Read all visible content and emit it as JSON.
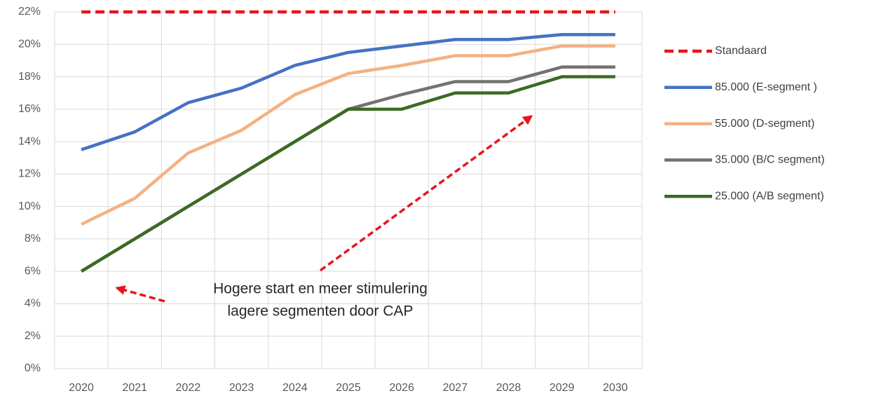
{
  "chart_data": {
    "type": "line",
    "categories": [
      "2020",
      "2021",
      "2022",
      "2023",
      "2024",
      "2025",
      "2026",
      "2027",
      "2028",
      "2029",
      "2030"
    ],
    "series": [
      {
        "name": "Standaard",
        "color": "#e8141b",
        "dashed": true,
        "values": [
          22,
          22,
          22,
          22,
          22,
          22,
          22,
          22,
          22,
          22,
          22
        ]
      },
      {
        "name": "85.000 (E-segment )",
        "color": "#4472c4",
        "values": [
          13.5,
          14.6,
          16.4,
          17.3,
          18.7,
          19.5,
          19.9,
          20.3,
          20.3,
          20.6,
          20.6
        ]
      },
      {
        "name": "55.000 (D-segment)",
        "color": "#f4b183",
        "values": [
          8.9,
          10.5,
          13.3,
          14.7,
          16.9,
          18.2,
          18.7,
          19.3,
          19.3,
          19.9,
          19.9
        ]
      },
      {
        "name": "35.000 (B/C segment)",
        "color": "#767171",
        "values": [
          6,
          8,
          10,
          12,
          14,
          16,
          16.9,
          17.7,
          17.7,
          18.6,
          18.6
        ]
      },
      {
        "name": "25.000 (A/B segment)",
        "color": "#3b6b22",
        "values": [
          6,
          8,
          10,
          12,
          14,
          16,
          16,
          17,
          17,
          18,
          18
        ]
      }
    ],
    "ylim": [
      0,
      22
    ],
    "yticks": [
      {
        "value": 0,
        "label": "0%"
      },
      {
        "value": 2,
        "label": "2%"
      },
      {
        "value": 4,
        "label": "4%"
      },
      {
        "value": 6,
        "label": "6%"
      },
      {
        "value": 8,
        "label": "8%"
      },
      {
        "value": 10,
        "label": "10%"
      },
      {
        "value": 12,
        "label": "12%"
      },
      {
        "value": 14,
        "label": "14%"
      },
      {
        "value": 16,
        "label": "16%"
      },
      {
        "value": 18,
        "label": "18%"
      },
      {
        "value": 20,
        "label": "20%"
      },
      {
        "value": 22,
        "label": "22%"
      }
    ],
    "grid": true,
    "legend": "right",
    "annotation": [
      "Hogere start en meer stimulering",
      "lagere segmenten door CAP"
    ]
  }
}
